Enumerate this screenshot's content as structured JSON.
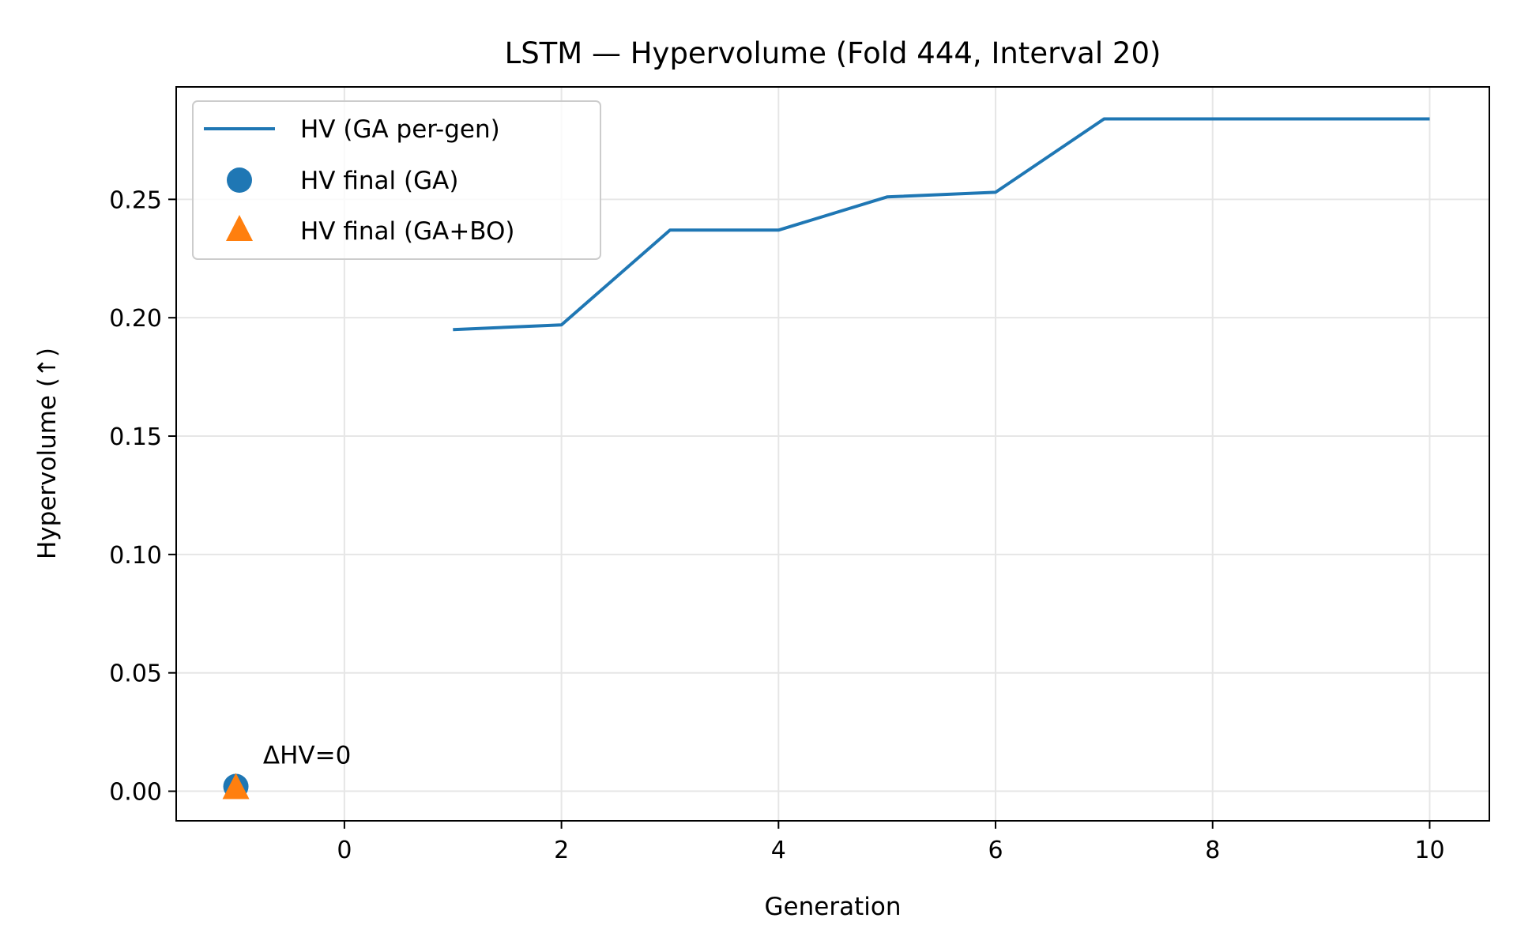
{
  "chart_data": {
    "type": "line",
    "title": "LSTM — Hypervolume (Fold 444, Interval 20)",
    "xlabel": "Generation",
    "ylabel": "Hypervolume (↑)",
    "xlim": [
      -1.55,
      10.55
    ],
    "ylim": [
      -0.0125,
      0.2975
    ],
    "xticks": [
      0,
      2,
      4,
      6,
      8,
      10
    ],
    "xtick_labels": [
      "0",
      "2",
      "4",
      "6",
      "8",
      "10"
    ],
    "yticks": [
      0.0,
      0.05,
      0.1,
      0.15,
      0.2,
      0.25
    ],
    "ytick_labels": [
      "0.00",
      "0.05",
      "0.10",
      "0.15",
      "0.20",
      "0.25"
    ],
    "grid": true,
    "legend_position": "top-left",
    "series": [
      {
        "name": "HV (GA per-gen)",
        "kind": "line",
        "color": "#1f77b4",
        "x": [
          1,
          2,
          3,
          4,
          5,
          6,
          7,
          8,
          9,
          10
        ],
        "y": [
          0.195,
          0.197,
          0.237,
          0.237,
          0.251,
          0.253,
          0.284,
          0.284,
          0.284,
          0.284
        ]
      },
      {
        "name": "HV final (GA)",
        "kind": "scatter",
        "marker": "circle",
        "color": "#1f77b4",
        "x": [
          -1
        ],
        "y": [
          0.002
        ]
      },
      {
        "name": "HV final (GA+BO)",
        "kind": "scatter",
        "marker": "triangle",
        "color": "#ff7f0e",
        "x": [
          -1
        ],
        "y": [
          0.001
        ]
      }
    ],
    "annotations": [
      {
        "text": "ΔHV=0",
        "x": -0.75,
        "y": 0.015
      }
    ]
  }
}
